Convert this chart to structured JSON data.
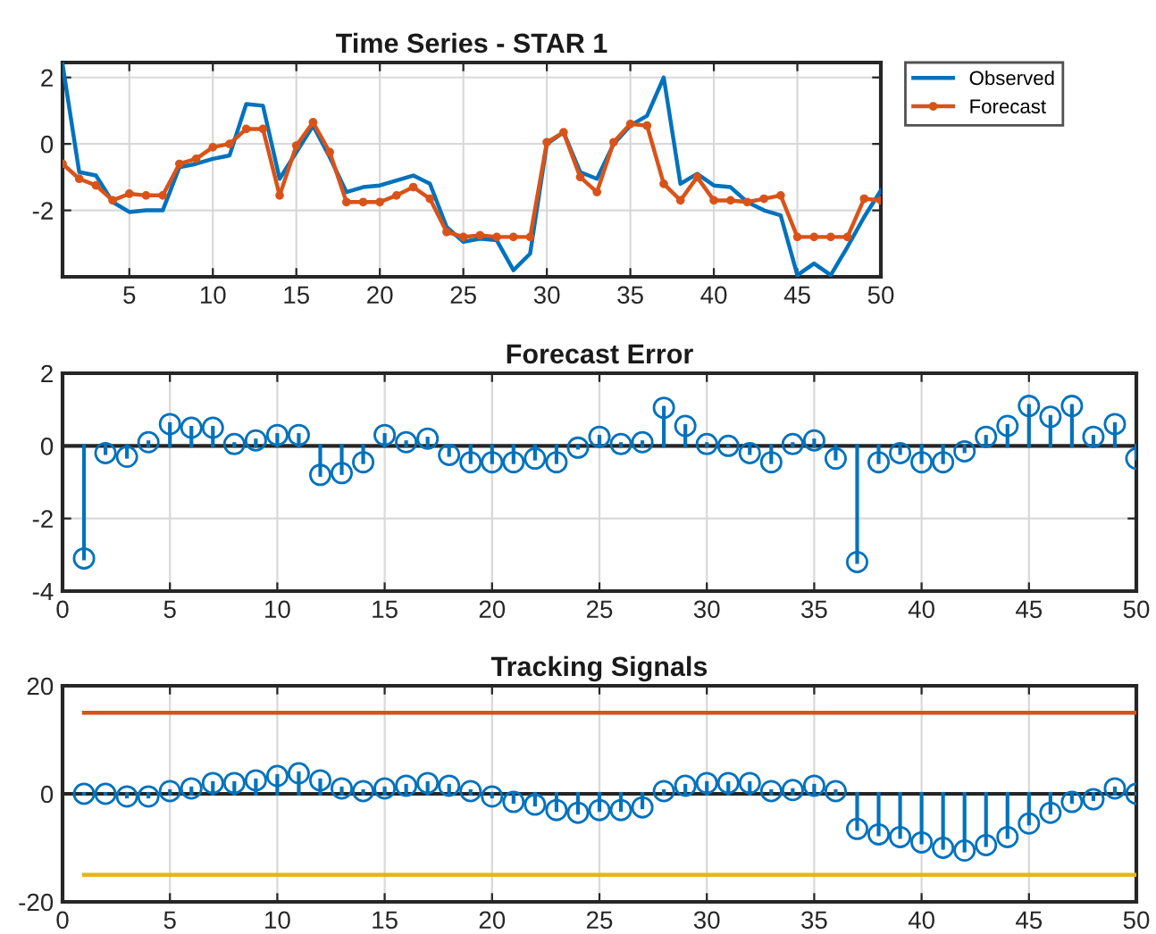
{
  "chart_data": [
    {
      "type": "line",
      "title": "Time Series - STAR 1",
      "x": [
        1,
        2,
        3,
        4,
        5,
        6,
        7,
        8,
        9,
        10,
        11,
        12,
        13,
        14,
        15,
        16,
        17,
        18,
        19,
        20,
        21,
        22,
        23,
        24,
        25,
        26,
        27,
        28,
        29,
        30,
        31,
        32,
        33,
        34,
        35,
        36,
        37,
        38,
        39,
        40,
        41,
        42,
        43,
        44,
        45,
        46,
        47,
        48,
        49,
        50
      ],
      "series": [
        {
          "name": "Observed",
          "color": "#0072bd",
          "marker": "none",
          "values": [
            2.4,
            -0.85,
            -0.95,
            -1.75,
            -2.05,
            -2.0,
            -2.0,
            -0.7,
            -0.6,
            -0.45,
            -0.35,
            1.2,
            1.15,
            -1.05,
            -0.25,
            0.55,
            -0.4,
            -1.45,
            -1.3,
            -1.25,
            -1.1,
            -0.95,
            -1.2,
            -2.5,
            -2.95,
            -2.85,
            -2.9,
            -3.8,
            -3.3,
            0.0,
            0.35,
            -0.85,
            -1.05,
            0.0,
            0.55,
            0.85,
            2.0,
            -1.2,
            -0.9,
            -1.25,
            -1.3,
            -1.75,
            -2.0,
            -2.15,
            -3.95,
            -3.6,
            -3.95,
            -3.1,
            -2.2,
            -1.4
          ]
        },
        {
          "name": "Forecast",
          "color": "#d95319",
          "marker": "circle",
          "values": [
            -0.6,
            -1.05,
            -1.25,
            -1.7,
            -1.5,
            -1.55,
            -1.55,
            -0.6,
            -0.45,
            -0.1,
            0.0,
            0.45,
            0.45,
            -1.55,
            -0.05,
            0.65,
            -0.25,
            -1.75,
            -1.75,
            -1.75,
            -1.55,
            -1.3,
            -1.65,
            -2.65,
            -2.8,
            -2.75,
            -2.8,
            -2.8,
            -2.8,
            0.05,
            0.35,
            -1.0,
            -1.45,
            0.05,
            0.6,
            0.55,
            -1.2,
            -1.7,
            -1.0,
            -1.7,
            -1.7,
            -1.75,
            -1.65,
            -1.55,
            -2.8,
            -2.8,
            -2.8,
            -2.8,
            -1.65,
            -1.7
          ]
        }
      ],
      "xlim": [
        1,
        50
      ],
      "ylim": [
        -4,
        2.45
      ],
      "xticks": [
        5,
        10,
        15,
        20,
        25,
        30,
        35,
        40,
        45,
        50
      ],
      "yticks": [
        -2,
        0,
        2
      ],
      "grid": true,
      "legend": "top right",
      "line_style": "solid"
    },
    {
      "type": "lollipop",
      "title": "Forecast Error",
      "x": [
        1,
        2,
        3,
        4,
        5,
        6,
        7,
        8,
        9,
        10,
        11,
        12,
        13,
        14,
        15,
        16,
        17,
        18,
        19,
        20,
        21,
        22,
        23,
        24,
        25,
        26,
        27,
        28,
        29,
        30,
        31,
        32,
        33,
        34,
        35,
        36,
        37,
        38,
        39,
        40,
        41,
        42,
        43,
        44,
        45,
        46,
        47,
        48,
        49,
        50
      ],
      "series": [
        {
          "color": "#0072bd",
          "values": [
            -3.1,
            -0.2,
            -0.3,
            0.1,
            0.6,
            0.5,
            0.5,
            0.05,
            0.15,
            0.3,
            0.3,
            -0.8,
            -0.75,
            -0.45,
            0.3,
            0.1,
            0.2,
            -0.25,
            -0.45,
            -0.45,
            -0.45,
            -0.35,
            -0.45,
            -0.05,
            0.25,
            0.05,
            0.1,
            1.05,
            0.55,
            0.05,
            0.0,
            -0.2,
            -0.45,
            0.05,
            0.15,
            -0.35,
            -3.2,
            -0.45,
            -0.2,
            -0.45,
            -0.45,
            -0.15,
            0.25,
            0.55,
            1.1,
            0.8,
            1.1,
            0.25,
            0.6,
            -0.35
          ]
        }
      ],
      "xlim": [
        0,
        50
      ],
      "ylim": [
        -4,
        2
      ],
      "xticks": [
        0,
        5,
        10,
        15,
        20,
        25,
        30,
        35,
        40,
        45,
        50
      ],
      "yticks": [
        -4,
        -2,
        0,
        2
      ],
      "grid": true,
      "marker": "circle"
    },
    {
      "type": "lollipop",
      "title": "Tracking Signals",
      "x": [
        1,
        2,
        3,
        4,
        5,
        6,
        7,
        8,
        9,
        10,
        11,
        12,
        13,
        14,
        15,
        16,
        17,
        18,
        19,
        20,
        21,
        22,
        23,
        24,
        25,
        26,
        27,
        28,
        29,
        30,
        31,
        32,
        33,
        34,
        35,
        36,
        37,
        38,
        39,
        40,
        41,
        42,
        43,
        44,
        45,
        46,
        47,
        48,
        49,
        50
      ],
      "series": [
        {
          "color": "#0072bd",
          "values": [
            0,
            0,
            -0.5,
            -0.5,
            0.5,
            1,
            2,
            2,
            2.5,
            3.3,
            3.8,
            2.5,
            1,
            0.5,
            1,
            1.5,
            2,
            1.5,
            0.5,
            -0.5,
            -1.5,
            -2,
            -3,
            -3.5,
            -3,
            -3,
            -2.5,
            0.5,
            1.5,
            2,
            2,
            2,
            0.5,
            0.7,
            1.5,
            0.5,
            -6.5,
            -7.5,
            -8,
            -9,
            -10,
            -10.5,
            -9.5,
            -8,
            -5.5,
            -3.5,
            -1.5,
            -1,
            1,
            0
          ]
        },
        {
          "type": "line",
          "color": "#d95319",
          "marker": "none",
          "values": [
            15,
            15,
            15,
            15,
            15,
            15,
            15,
            15,
            15,
            15,
            15,
            15,
            15,
            15,
            15,
            15,
            15,
            15,
            15,
            15,
            15,
            15,
            15,
            15,
            15,
            15,
            15,
            15,
            15,
            15,
            15,
            15,
            15,
            15,
            15,
            15,
            15,
            15,
            15,
            15,
            15,
            15,
            15,
            15,
            15,
            15,
            15,
            15,
            15,
            15
          ]
        },
        {
          "type": "line",
          "color": "#edb120",
          "marker": "none",
          "values": [
            -15,
            -15,
            -15,
            -15,
            -15,
            -15,
            -15,
            -15,
            -15,
            -15,
            -15,
            -15,
            -15,
            -15,
            -15,
            -15,
            -15,
            -15,
            -15,
            -15,
            -15,
            -15,
            -15,
            -15,
            -15,
            -15,
            -15,
            -15,
            -15,
            -15,
            -15,
            -15,
            -15,
            -15,
            -15,
            -15,
            -15,
            -15,
            -15,
            -15,
            -15,
            -15,
            -15,
            -15,
            -15,
            -15,
            -15,
            -15,
            -15,
            -15
          ]
        }
      ],
      "xlim": [
        0,
        50
      ],
      "ylim": [
        -20,
        20
      ],
      "xticks": [
        0,
        5,
        10,
        15,
        20,
        25,
        30,
        35,
        40,
        45,
        50
      ],
      "yticks": [
        -20,
        0,
        20
      ],
      "grid": true,
      "marker": "circle"
    }
  ]
}
